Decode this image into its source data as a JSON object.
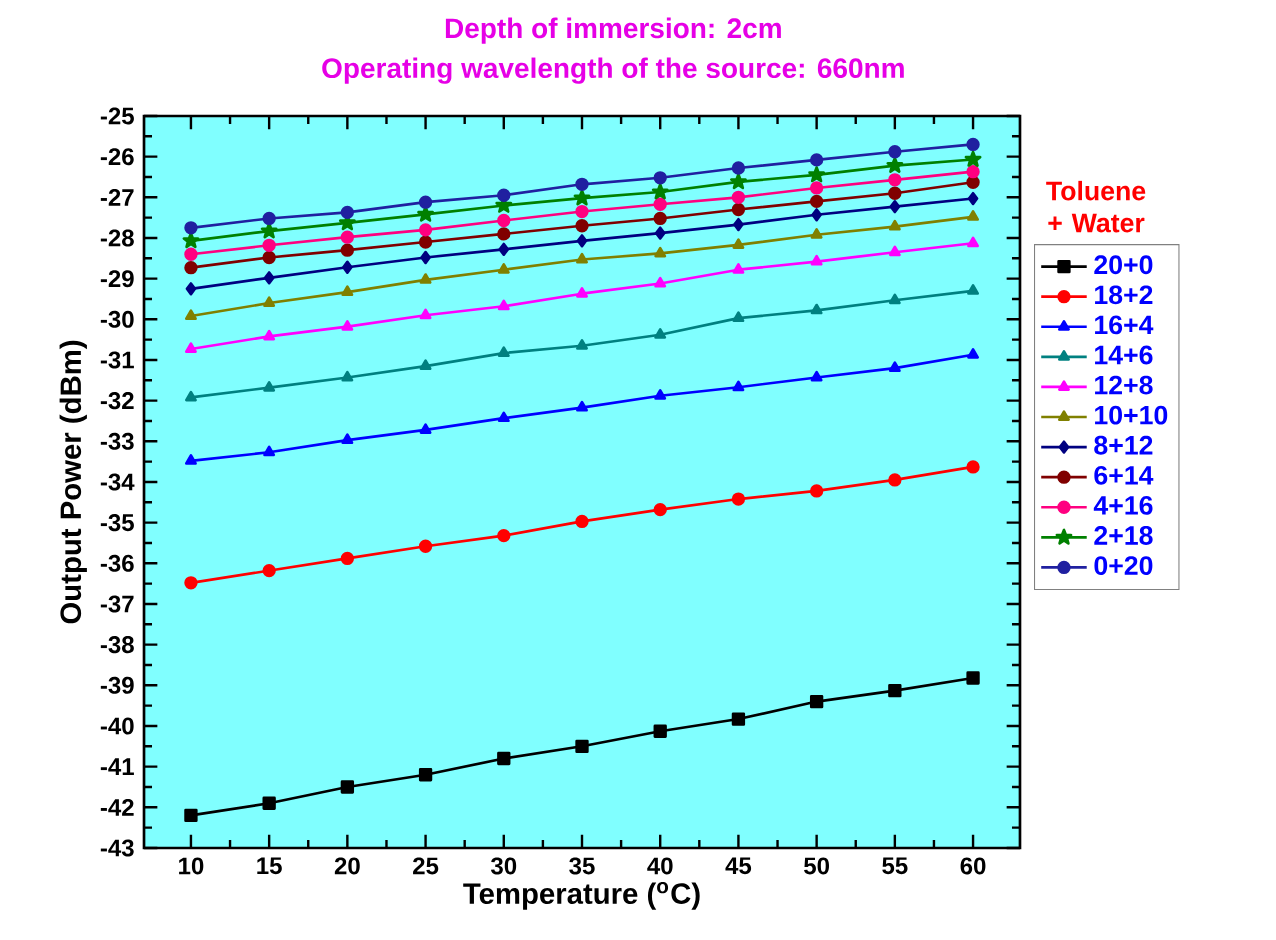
{
  "chart_data": {
    "type": "line",
    "title": "Depth of immersion: 2cm",
    "subtitle": "Operating wavelength of the source: 660nm",
    "xlabel": "Temperature ($^{o}$C)",
    "ylabel": "Output Power (dBm)",
    "legend_title": "Toluene + Water",
    "legend": "right",
    "grid": false,
    "x": [
      10,
      15,
      20,
      25,
      30,
      35,
      40,
      45,
      50,
      55,
      60
    ],
    "xlim": [
      7,
      63
    ],
    "xticks": [
      10,
      15,
      20,
      25,
      30,
      35,
      40,
      45,
      50,
      55,
      60
    ],
    "ylim": [
      -43,
      -25
    ],
    "yticks": [
      -43,
      -42,
      -41,
      -40,
      -39,
      -38,
      -37,
      -36,
      -35,
      -34,
      -33,
      -32,
      -31,
      -30,
      -29,
      -28,
      -27,
      -26,
      -25
    ],
    "series": [
      {
        "name": "20+0",
        "color": "#000000",
        "marker": "square",
        "values": [
          -42.2,
          -41.9,
          -41.5,
          -41.2,
          -40.8,
          -40.5,
          -40.13,
          -39.83,
          -39.4,
          -39.13,
          -38.82
        ]
      },
      {
        "name": "18+2",
        "color": "#ff0000",
        "marker": "circle",
        "values": [
          -36.48,
          -36.18,
          -35.88,
          -35.58,
          -35.32,
          -34.97,
          -34.68,
          -34.42,
          -34.22,
          -33.95,
          -33.63
        ]
      },
      {
        "name": "16+4",
        "color": "#0000ff",
        "marker": "triangle",
        "values": [
          -33.48,
          -33.27,
          -32.97,
          -32.72,
          -32.43,
          -32.17,
          -31.88,
          -31.67,
          -31.43,
          -31.2,
          -30.87
        ]
      },
      {
        "name": "14+6",
        "color": "#008080",
        "marker": "triangle",
        "values": [
          -31.92,
          -31.68,
          -31.43,
          -31.15,
          -30.83,
          -30.65,
          -30.38,
          -29.97,
          -29.78,
          -29.53,
          -29.3
        ]
      },
      {
        "name": "12+8",
        "color": "#ff00ff",
        "marker": "triangle",
        "values": [
          -30.73,
          -30.42,
          -30.18,
          -29.9,
          -29.68,
          -29.37,
          -29.12,
          -28.78,
          -28.58,
          -28.35,
          -28.13
        ]
      },
      {
        "name": "10+10",
        "color": "#808000",
        "marker": "triangle",
        "values": [
          -29.92,
          -29.6,
          -29.33,
          -29.03,
          -28.78,
          -28.53,
          -28.38,
          -28.17,
          -27.92,
          -27.72,
          -27.48
        ]
      },
      {
        "name": "8+12",
        "color": "#000080",
        "marker": "diamond",
        "values": [
          -29.25,
          -28.98,
          -28.72,
          -28.48,
          -28.28,
          -28.07,
          -27.88,
          -27.67,
          -27.43,
          -27.23,
          -27.03
        ]
      },
      {
        "name": "6+14",
        "color": "#800000",
        "marker": "circle",
        "values": [
          -28.73,
          -28.48,
          -28.3,
          -28.1,
          -27.9,
          -27.7,
          -27.52,
          -27.3,
          -27.1,
          -26.9,
          -26.63
        ]
      },
      {
        "name": "4+16",
        "color": "#ff0080",
        "marker": "circle",
        "values": [
          -28.4,
          -28.18,
          -27.98,
          -27.8,
          -27.57,
          -27.35,
          -27.17,
          -27.0,
          -26.77,
          -26.57,
          -26.37
        ]
      },
      {
        "name": "2+18",
        "color": "#008000",
        "marker": "star",
        "values": [
          -28.07,
          -27.83,
          -27.63,
          -27.42,
          -27.2,
          -27.02,
          -26.87,
          -26.62,
          -26.45,
          -26.22,
          -26.07
        ]
      },
      {
        "name": "0+20",
        "color": "#2020a0",
        "marker": "circle",
        "values": [
          -27.75,
          -27.52,
          -27.37,
          -27.12,
          -26.95,
          -26.68,
          -26.52,
          -26.28,
          -26.08,
          -25.88,
          -25.7
        ]
      }
    ]
  }
}
